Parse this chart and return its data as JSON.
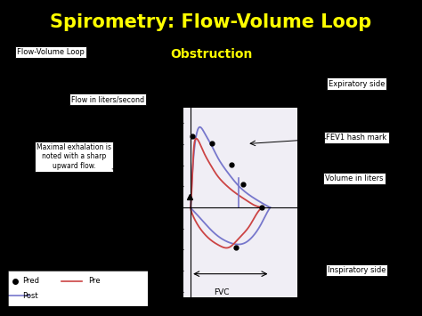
{
  "title": "Spirometry: Flow-Volume Loop",
  "subtitle": "Obstruction",
  "title_color": "#FFFF00",
  "subtitle_color": "#FFFF00",
  "bg_color": "#000000",
  "panel_bg": "#FFFFFF",
  "chart_bg": "#F0EEF5",
  "title_fontsize": 15,
  "subtitle_fontsize": 10,
  "xlim": [
    -0.3,
    4.5
  ],
  "ylim": [
    -8.5,
    9.5
  ],
  "xticks": [
    1,
    2,
    3,
    4
  ],
  "yticks": [
    -8,
    -6,
    -4,
    -2,
    0,
    2,
    4,
    6,
    8
  ],
  "blue_exp_vol": [
    0.0,
    0.15,
    0.35,
    0.6,
    0.9,
    1.2,
    1.6,
    2.0,
    2.4,
    2.8,
    3.1,
    3.3,
    3.35
  ],
  "blue_exp_flow": [
    0.0,
    5.5,
    7.6,
    7.0,
    5.8,
    4.5,
    3.2,
    2.1,
    1.3,
    0.7,
    0.3,
    0.05,
    0.0
  ],
  "blue_insp_vol": [
    3.35,
    3.1,
    2.8,
    2.4,
    2.0,
    1.6,
    1.2,
    0.8,
    0.4,
    0.1,
    0.0
  ],
  "blue_insp_flow": [
    0.0,
    -1.0,
    -2.2,
    -3.2,
    -3.5,
    -3.3,
    -2.8,
    -2.0,
    -1.0,
    -0.3,
    0.0
  ],
  "red_exp_vol": [
    0.0,
    0.1,
    0.2,
    0.4,
    0.6,
    0.9,
    1.2,
    1.6,
    2.0,
    2.4,
    2.7,
    2.95,
    3.0
  ],
  "red_exp_flow": [
    0.0,
    4.5,
    6.5,
    6.0,
    5.0,
    3.8,
    2.8,
    1.9,
    1.2,
    0.6,
    0.2,
    0.03,
    0.0
  ],
  "red_insp_vol": [
    3.0,
    2.7,
    2.4,
    2.0,
    1.6,
    1.2,
    0.8,
    0.4,
    0.1,
    0.0
  ],
  "red_insp_flow": [
    0.0,
    -0.9,
    -2.0,
    -3.0,
    -3.8,
    -3.6,
    -3.0,
    -2.0,
    -0.8,
    0.0
  ],
  "pred_dots": [
    [
      0.05,
      6.8
    ],
    [
      0.9,
      6.1
    ],
    [
      1.7,
      4.1
    ],
    [
      2.2,
      2.2
    ],
    [
      3.0,
      0.05
    ],
    [
      1.9,
      -3.8
    ]
  ],
  "fvc_x_start": 0.0,
  "fvc_x_end": 3.35,
  "fvc_y": -6.3,
  "fev1_x": 2.0,
  "fev1_ymin": 0.0,
  "fev1_ymax": 2.8
}
